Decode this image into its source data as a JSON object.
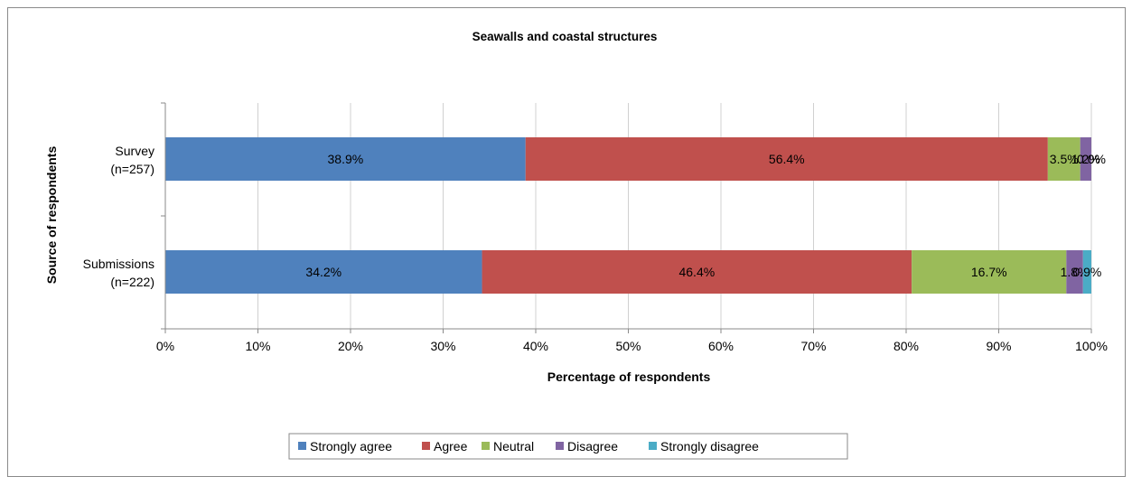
{
  "chart_data": {
    "type": "bar",
    "orientation": "horizontal",
    "stacked": "percent",
    "title": "Seawalls and coastal structures",
    "xlabel": "Percentage of respondents",
    "ylabel": "Source of respondents",
    "xlim": [
      0,
      100
    ],
    "x_ticks": [
      "0%",
      "10%",
      "20%",
      "30%",
      "40%",
      "50%",
      "60%",
      "70%",
      "80%",
      "90%",
      "100%"
    ],
    "grid": "vertical",
    "legend_position": "bottom",
    "categories": [
      [
        "Survey",
        "(n=257)"
      ],
      [
        "Submissions",
        "(n=222)"
      ]
    ],
    "series": [
      {
        "name": "Strongly agree",
        "color": "#4f81bd",
        "values": [
          38.9,
          34.2
        ],
        "labels": [
          "38.9%",
          "34.2%"
        ]
      },
      {
        "name": "Agree",
        "color": "#c0504d",
        "values": [
          56.4,
          46.4
        ],
        "labels": [
          "56.4%",
          "46.4%"
        ]
      },
      {
        "name": "Neutral",
        "color": "#9bbb59",
        "values": [
          3.5,
          16.7
        ],
        "labels": [
          "3.5%",
          "16.7%"
        ]
      },
      {
        "name": "Disagree",
        "color": "#8064a2",
        "values": [
          1.2,
          1.8
        ],
        "labels": [
          "1.2%",
          "1.8%"
        ]
      },
      {
        "name": "Strongly disagree",
        "color": "#4bacc6",
        "values": [
          0.0,
          0.9
        ],
        "labels": [
          "0.0%",
          "0.9%"
        ]
      }
    ]
  }
}
